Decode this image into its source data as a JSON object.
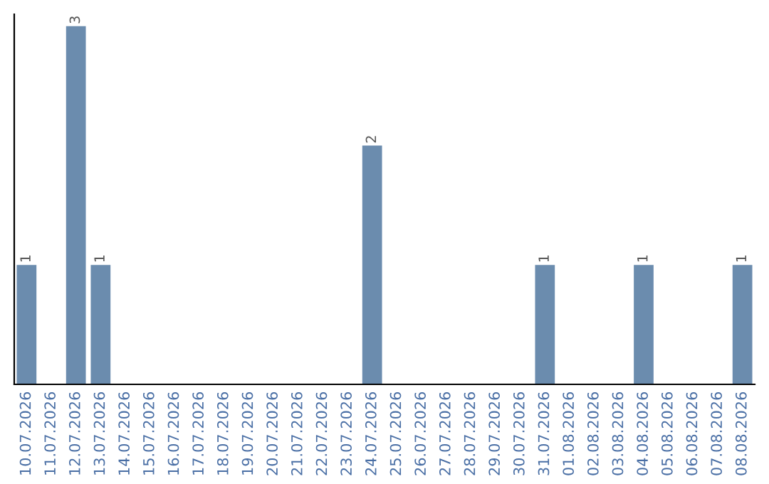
{
  "chart_data": {
    "type": "bar",
    "categories": [
      "10.07.2026",
      "11.07.2026",
      "12.07.2026",
      "13.07.2026",
      "14.07.2026",
      "15.07.2026",
      "16.07.2026",
      "17.07.2026",
      "18.07.2026",
      "19.07.2026",
      "20.07.2026",
      "21.07.2026",
      "22.07.2026",
      "23.07.2026",
      "24.07.2026",
      "25.07.2026",
      "26.07.2026",
      "27.07.2026",
      "28.07.2026",
      "29.07.2026",
      "30.07.2026",
      "31.07.2026",
      "01.08.2026",
      "02.08.2026",
      "03.08.2026",
      "04.08.2026",
      "05.08.2026",
      "06.08.2026",
      "07.08.2026",
      "08.08.2026"
    ],
    "values": [
      1,
      0,
      3,
      1,
      0,
      0,
      0,
      0,
      0,
      0,
      0,
      0,
      0,
      0,
      2,
      0,
      0,
      0,
      0,
      0,
      0,
      1,
      0,
      0,
      0,
      1,
      0,
      0,
      0,
      1
    ],
    "value_labels": [
      "1",
      null,
      "3",
      "1",
      null,
      null,
      null,
      null,
      null,
      null,
      null,
      null,
      null,
      null,
      "2",
      null,
      null,
      null,
      null,
      null,
      null,
      "1",
      null,
      null,
      null,
      "1",
      null,
      null,
      null,
      "1"
    ],
    "color": "#6b8cae",
    "ylim": [
      0,
      3.1
    ],
    "tick_labels": "x",
    "grid": false,
    "legend": false
  }
}
